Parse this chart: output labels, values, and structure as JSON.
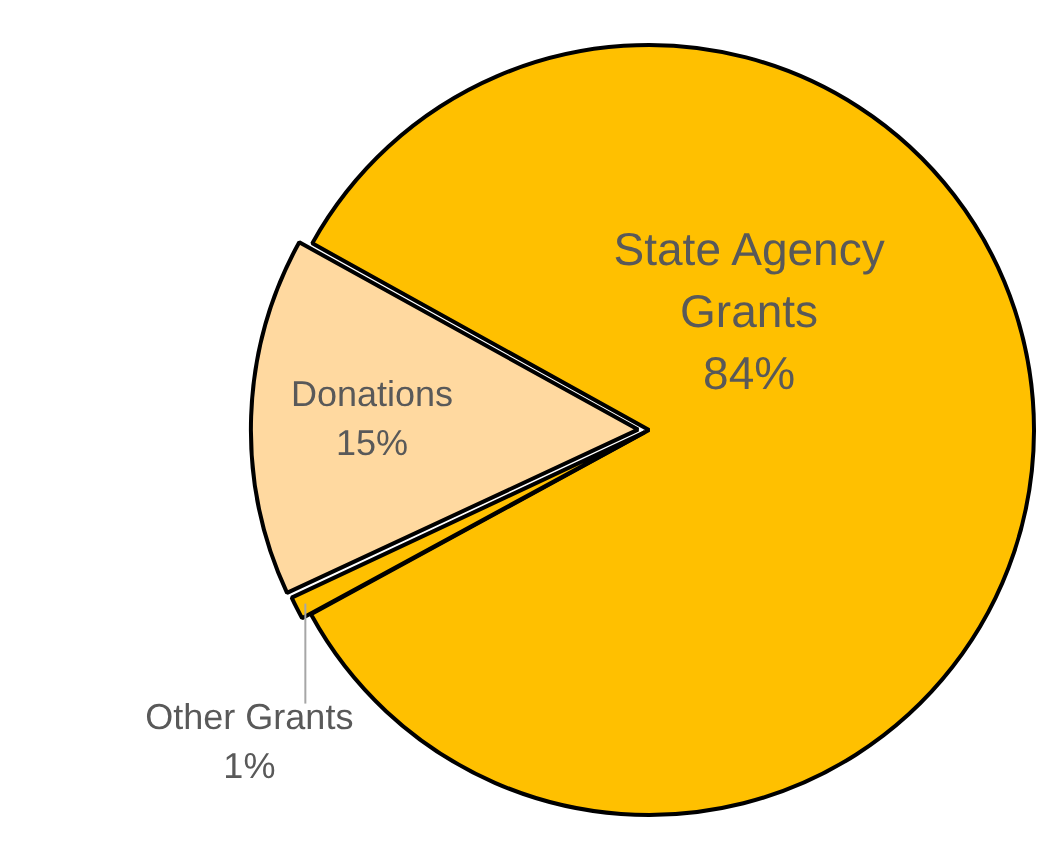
{
  "chart_data": {
    "type": "pie",
    "categories": [
      "State Agency Grants",
      "Other Grants",
      "Donations"
    ],
    "values": [
      84,
      1,
      15
    ],
    "colors": [
      "#ffc000",
      "#ffc000",
      "#ffd9a0"
    ],
    "value_labels": [
      "84%",
      "1%",
      "15%"
    ]
  }
}
